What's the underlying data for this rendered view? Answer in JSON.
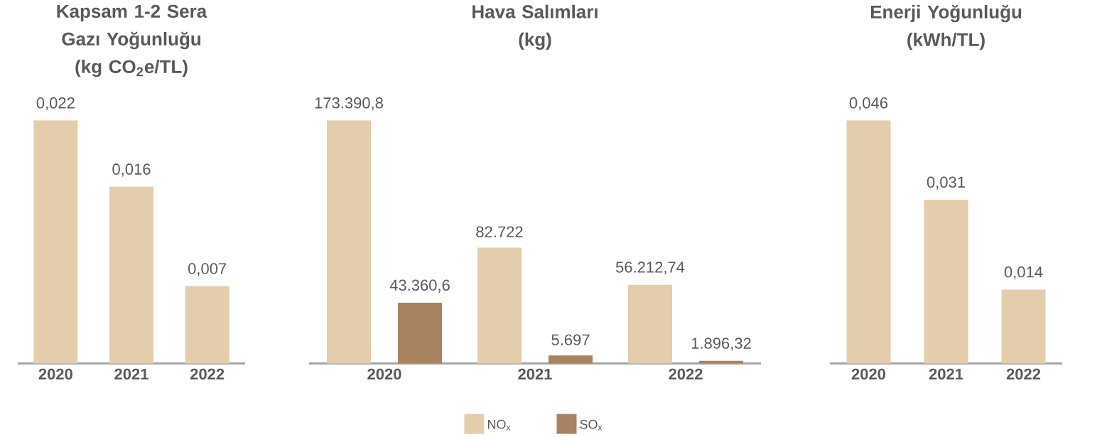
{
  "chart_data": [
    {
      "type": "bar",
      "title": "Kapsam 1-2 Sera Gazı Yoğunluğu",
      "subtitle": "(kg CO$_{2}$e/TL)",
      "categories": [
        "2020",
        "2021",
        "2022"
      ],
      "values": [
        0.022,
        0.016,
        0.007
      ],
      "value_labels": [
        "0,022",
        "0,016",
        "0,007"
      ],
      "color": "#e3cdac",
      "grid": false,
      "legend": false
    },
    {
      "type": "bar",
      "title": "Hava Salımları",
      "subtitle": "(kg)",
      "categories": [
        "2020",
        "2021",
        "2022"
      ],
      "series": [
        {
          "name": "NO$_{x}$",
          "color": "#e3cdac",
          "values": [
            173390.8,
            82722,
            56212.74
          ],
          "value_labels": [
            "173.390,8",
            "82.722",
            "56.212,74"
          ]
        },
        {
          "name": "SO$_{x}$",
          "color": "#a8835f",
          "values": [
            43360.6,
            5697,
            1896.32
          ],
          "value_labels": [
            "43.360,6",
            "5.697",
            "1.896,32"
          ]
        }
      ],
      "grid": false,
      "legend": "bottom"
    },
    {
      "type": "bar",
      "title": "Enerji Yoğunluğu",
      "subtitle": "(kWh/TL)",
      "categories": [
        "2020",
        "2021",
        "2022"
      ],
      "values": [
        0.046,
        0.031,
        0.014
      ],
      "value_labels": [
        "0,046",
        "0,031",
        "0,014"
      ],
      "color": "#e3cdac",
      "grid": false,
      "legend": false
    }
  ]
}
